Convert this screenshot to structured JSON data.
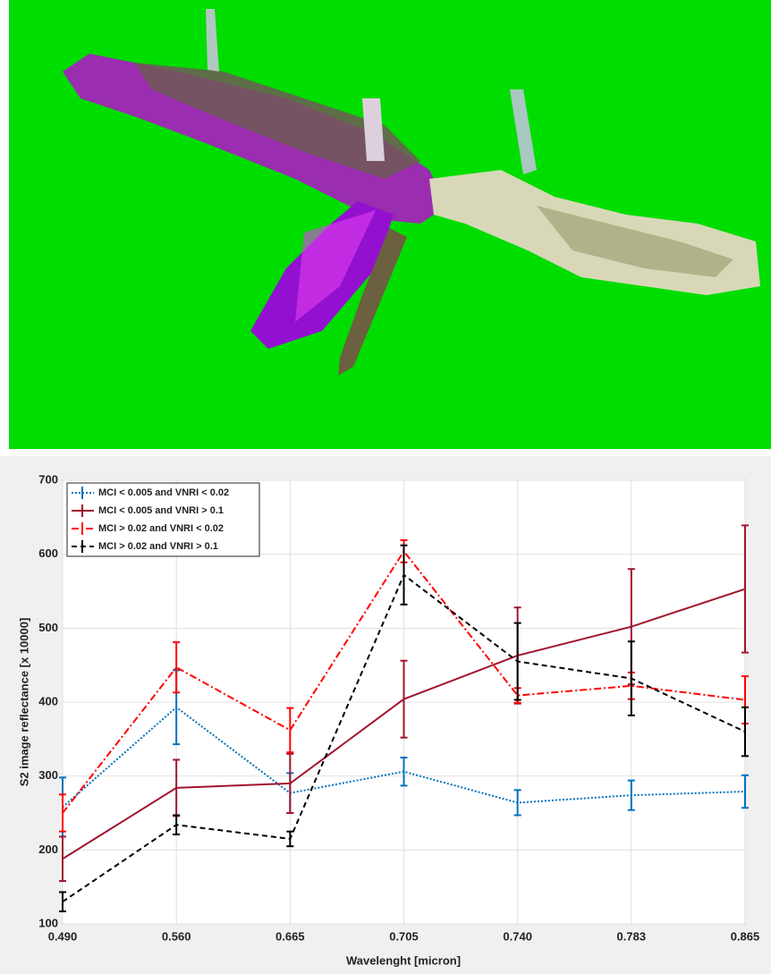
{
  "chart_data": {
    "type": "line",
    "xlabel": "Wavelenght [micron]",
    "ylabel": "S2 image reflectance [x 10000]",
    "categories": [
      "0.490",
      "0.560",
      "0.665",
      "0.705",
      "0.740",
      "0.783",
      "0.865"
    ],
    "ylim": [
      100,
      700
    ],
    "yticks": [
      100,
      200,
      300,
      400,
      500,
      600,
      700
    ],
    "grid": true,
    "legend": "upper-left",
    "series": [
      {
        "name": "MCI < 0.005 and VNRI < 0.02",
        "color": "#0072bd",
        "dash": "dotted",
        "values": [
          258,
          393,
          277,
          306,
          264,
          274,
          279
        ],
        "errors": [
          40,
          50,
          27,
          19,
          17,
          20,
          22
        ]
      },
      {
        "name": "MCI < 0.005 and VNRI > 0.1",
        "color": "#a2142f",
        "dash": "solid",
        "values": [
          188,
          284,
          290,
          404,
          463,
          502,
          553
        ],
        "errors": [
          30,
          38,
          40,
          52,
          65,
          78,
          86
        ]
      },
      {
        "name": "MCI > 0.02 and VNRI < 0.02",
        "color": "#ff0000",
        "dash": "dashdot",
        "values": [
          250,
          447,
          362,
          604,
          409,
          422,
          403
        ],
        "errors": [
          25,
          34,
          30,
          15,
          10,
          18,
          32
        ]
      },
      {
        "name": "MCI > 0.02 and VNRI > 0.1",
        "color": "#000000",
        "dash": "dashed",
        "values": [
          130,
          234,
          215,
          572,
          455,
          432,
          360
        ],
        "errors": [
          13,
          13,
          10,
          40,
          52,
          50,
          33
        ]
      }
    ]
  }
}
